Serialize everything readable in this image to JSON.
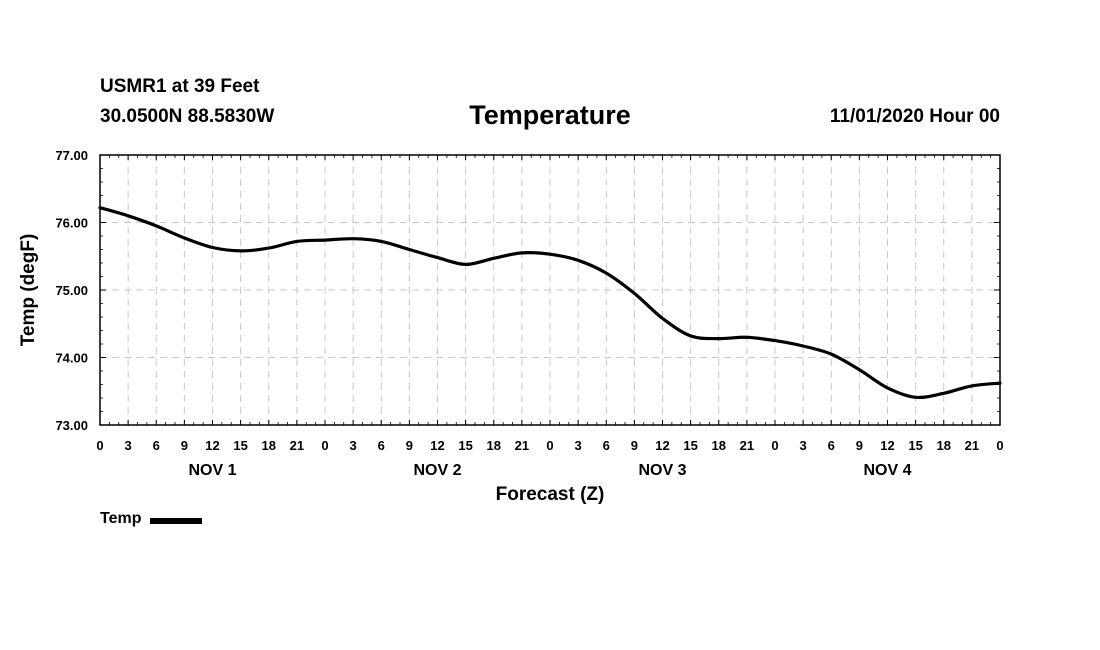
{
  "header": {
    "station": "USMR1 at 39 Feet",
    "coords": "30.0500N 88.5830W",
    "title": "Temperature",
    "runtime": "11/01/2020 Hour 00"
  },
  "legend": {
    "label": "Temp"
  },
  "colors": {
    "line": "#000000",
    "grid": "#c8c8c8",
    "background": "#ffffff"
  },
  "chart_data": {
    "type": "line",
    "title": "Temperature",
    "xlabel": "Forecast (Z)",
    "ylabel": "Temp (degF)",
    "xlim": [
      0,
      96
    ],
    "ylim": [
      73.0,
      77.0
    ],
    "y_ticks": [
      "73.00",
      "74.00",
      "75.00",
      "76.00",
      "77.00"
    ],
    "x_tick_step_hours": 3,
    "x_tick_labels": [
      "0",
      "3",
      "6",
      "9",
      "12",
      "15",
      "18",
      "21",
      "0",
      "3",
      "6",
      "9",
      "12",
      "15",
      "18",
      "21",
      "0",
      "3",
      "6",
      "9",
      "12",
      "15",
      "18",
      "21",
      "0",
      "3",
      "6",
      "9",
      "12",
      "15",
      "18",
      "21",
      "0"
    ],
    "day_labels": [
      {
        "label": "NOV 1",
        "hour": 12
      },
      {
        "label": "NOV 2",
        "hour": 36
      },
      {
        "label": "NOV 3",
        "hour": 60
      },
      {
        "label": "NOV 4",
        "hour": 84
      }
    ],
    "grid": true,
    "legend_position": "bottom-left",
    "series": [
      {
        "name": "Temp",
        "x": [
          0,
          3,
          6,
          9,
          12,
          15,
          18,
          21,
          24,
          27,
          30,
          33,
          36,
          39,
          42,
          45,
          48,
          51,
          54,
          57,
          60,
          63,
          66,
          69,
          72,
          75,
          78,
          81,
          84,
          87,
          90,
          93,
          96
        ],
        "values": [
          76.22,
          76.1,
          75.95,
          75.77,
          75.63,
          75.58,
          75.62,
          75.72,
          75.74,
          75.76,
          75.72,
          75.6,
          75.48,
          75.38,
          75.47,
          75.55,
          75.53,
          75.44,
          75.25,
          74.95,
          74.58,
          74.32,
          74.28,
          74.3,
          74.25,
          74.17,
          74.05,
          73.82,
          73.55,
          73.41,
          73.47,
          73.58,
          73.62
        ]
      }
    ]
  }
}
